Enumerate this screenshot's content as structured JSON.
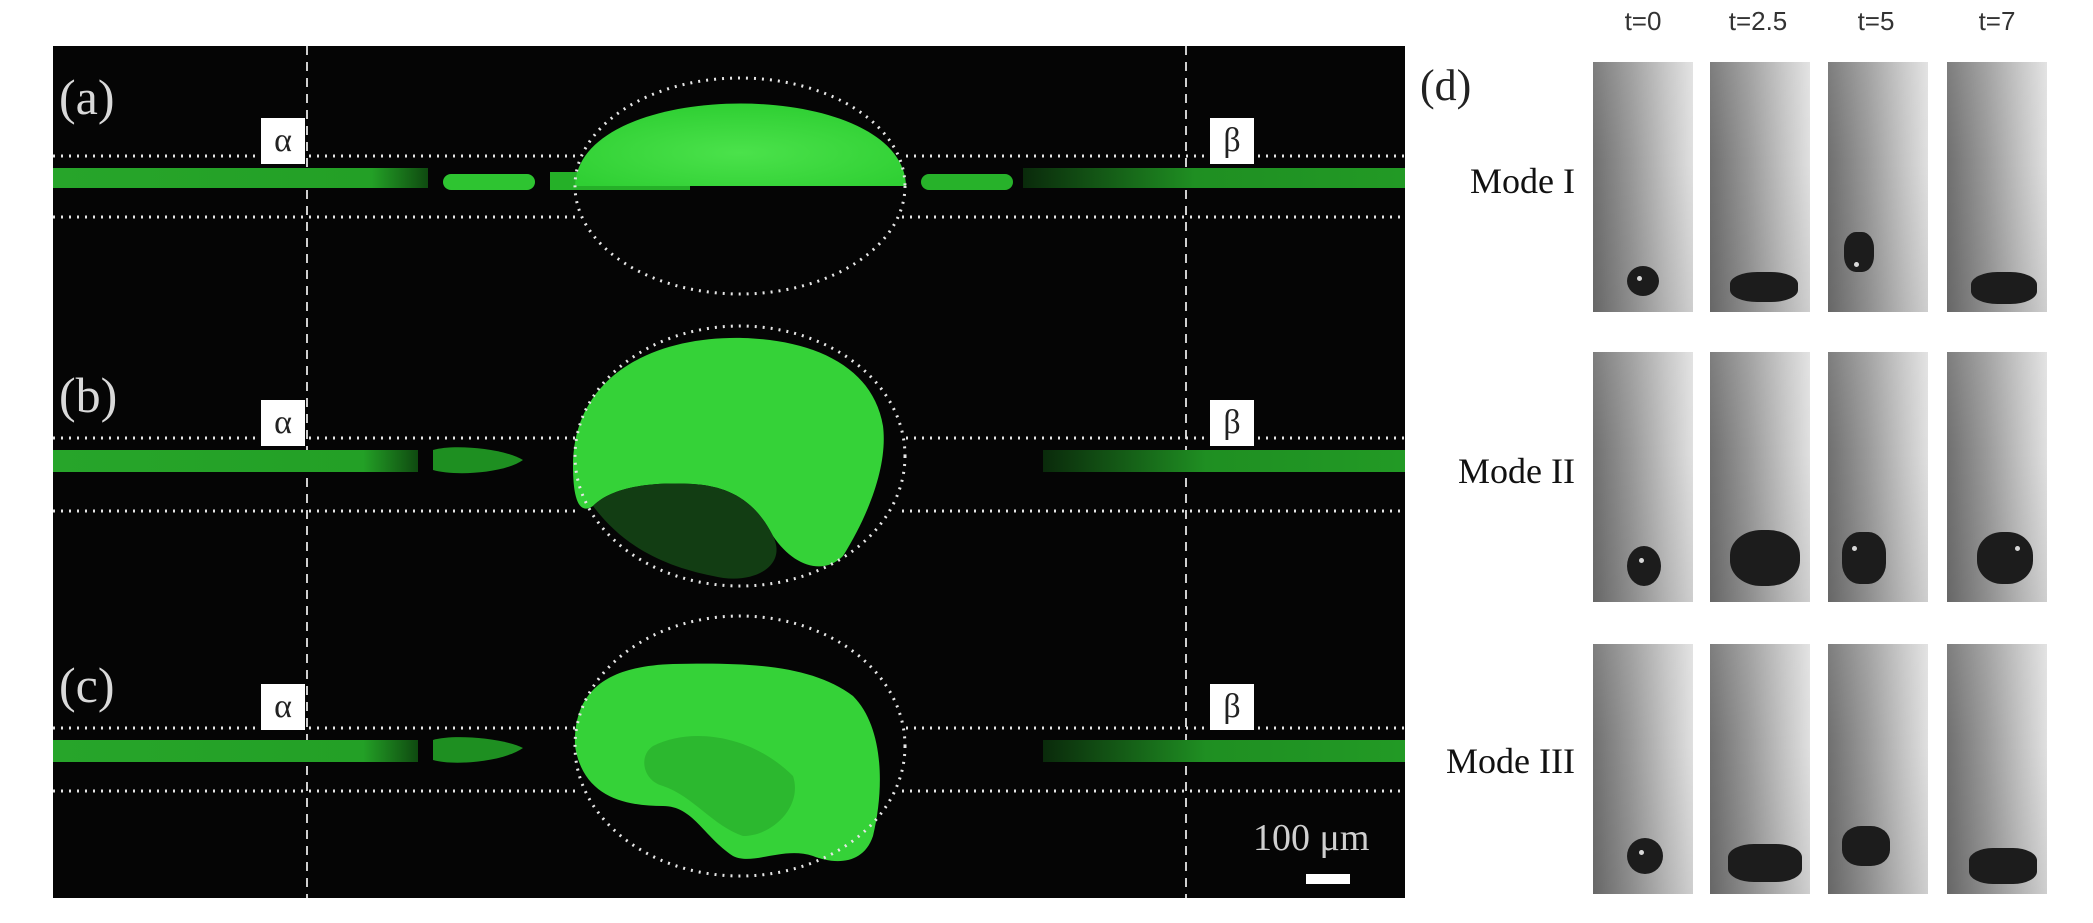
{
  "figure": {
    "panels": [
      {
        "tag": "(a)",
        "alpha": "α",
        "beta": "β"
      },
      {
        "tag": "(b)",
        "alpha": "α",
        "beta": "β"
      },
      {
        "tag": "(c)",
        "alpha": "α",
        "beta": "β"
      }
    ],
    "scale_bar": "100 μm",
    "panel_d": {
      "tag": "(d)",
      "times": [
        "t=0",
        "t=2.5",
        "t=5",
        "t=7"
      ],
      "modes": [
        "Mode I",
        "Mode II",
        "Mode III"
      ]
    }
  },
  "colors": {
    "background": "#050505",
    "fluorescence": "#39d93b",
    "channel_green": "#1f8f22",
    "frame_gray": "#9a9a9a"
  }
}
